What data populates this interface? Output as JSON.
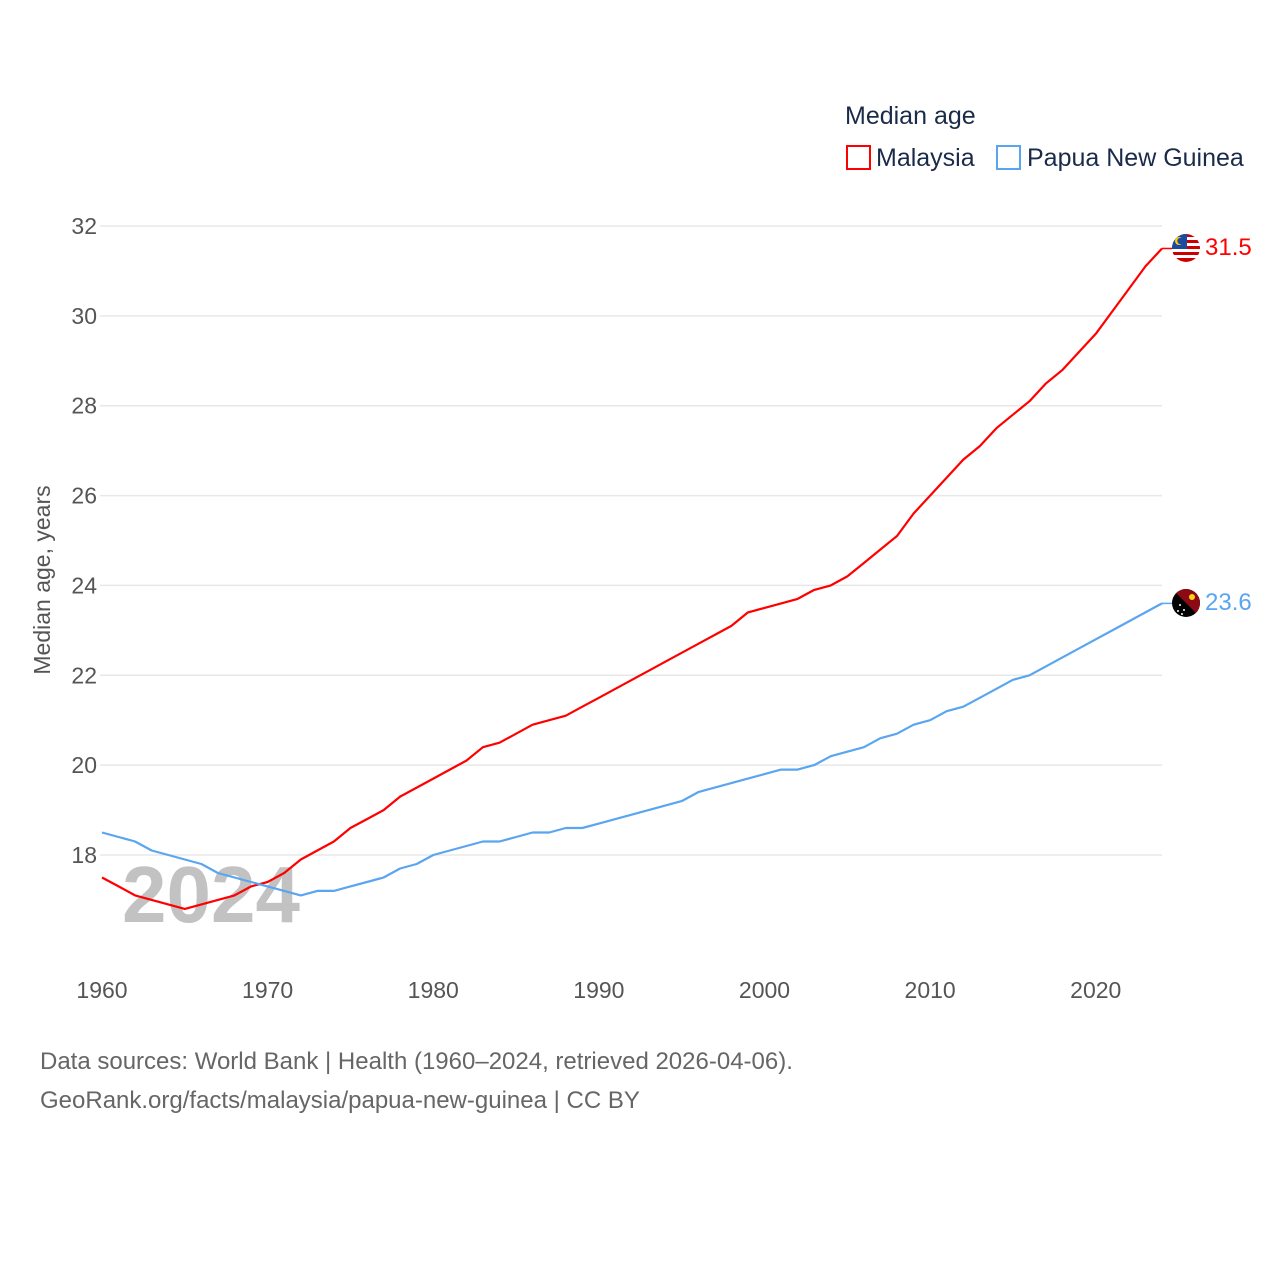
{
  "chart_data": {
    "type": "line",
    "legend_title": "Median age",
    "legend_position": "top-right",
    "ylabel": "Median age, years",
    "xlabel": "",
    "ylim": [
      16,
      32
    ],
    "xlim": [
      1960,
      2024
    ],
    "yticks": [
      18,
      20,
      22,
      24,
      26,
      28,
      30,
      32
    ],
    "xticks": [
      1960,
      1970,
      1980,
      1990,
      2000,
      2010,
      2020
    ],
    "grid": true,
    "watermark_year": "2024",
    "x": [
      1960,
      1961,
      1962,
      1963,
      1964,
      1965,
      1966,
      1967,
      1968,
      1969,
      1970,
      1971,
      1972,
      1973,
      1974,
      1975,
      1976,
      1977,
      1978,
      1979,
      1980,
      1981,
      1982,
      1983,
      1984,
      1985,
      1986,
      1987,
      1988,
      1989,
      1990,
      1991,
      1992,
      1993,
      1994,
      1995,
      1996,
      1997,
      1998,
      1999,
      2000,
      2001,
      2002,
      2003,
      2004,
      2005,
      2006,
      2007,
      2008,
      2009,
      2010,
      2011,
      2012,
      2013,
      2014,
      2015,
      2016,
      2017,
      2018,
      2019,
      2020,
      2021,
      2022,
      2023,
      2024
    ],
    "series": [
      {
        "name": "Malaysia",
        "color": "#ff0000",
        "end_label": "31.5",
        "values": [
          17.5,
          17.3,
          17.1,
          17.0,
          16.9,
          16.8,
          16.9,
          17.0,
          17.1,
          17.3,
          17.4,
          17.6,
          17.9,
          18.1,
          18.3,
          18.6,
          18.8,
          19.0,
          19.3,
          19.5,
          19.7,
          19.9,
          20.1,
          20.4,
          20.5,
          20.7,
          20.9,
          21.0,
          21.1,
          21.3,
          21.5,
          21.7,
          21.9,
          22.1,
          22.3,
          22.5,
          22.7,
          22.9,
          23.1,
          23.4,
          23.5,
          23.6,
          23.7,
          23.9,
          24.0,
          24.2,
          24.5,
          24.8,
          25.1,
          25.6,
          26.0,
          26.4,
          26.8,
          27.1,
          27.5,
          27.8,
          28.1,
          28.5,
          28.8,
          29.2,
          29.6,
          30.1,
          30.6,
          31.1,
          31.5
        ]
      },
      {
        "name": "Papua New Guinea",
        "color": "#5aa5f0",
        "end_label": "23.6",
        "values": [
          18.5,
          18.4,
          18.3,
          18.1,
          18.0,
          17.9,
          17.8,
          17.6,
          17.5,
          17.4,
          17.3,
          17.2,
          17.1,
          17.2,
          17.2,
          17.3,
          17.4,
          17.5,
          17.7,
          17.8,
          18.0,
          18.1,
          18.2,
          18.3,
          18.3,
          18.4,
          18.5,
          18.5,
          18.6,
          18.6,
          18.7,
          18.8,
          18.9,
          19.0,
          19.1,
          19.2,
          19.4,
          19.5,
          19.6,
          19.7,
          19.8,
          19.9,
          19.9,
          20.0,
          20.2,
          20.3,
          20.4,
          20.6,
          20.7,
          20.9,
          21.0,
          21.2,
          21.3,
          21.5,
          21.7,
          21.9,
          22.0,
          22.2,
          22.4,
          22.6,
          22.8,
          23.0,
          23.2,
          23.4,
          23.6
        ]
      }
    ]
  },
  "footer": {
    "line1": "Data sources: World Bank | Health (1960–2024, retrieved 2026-04-06).",
    "line2": "GeoRank.org/facts/malaysia/papua-new-guinea | CC BY"
  }
}
